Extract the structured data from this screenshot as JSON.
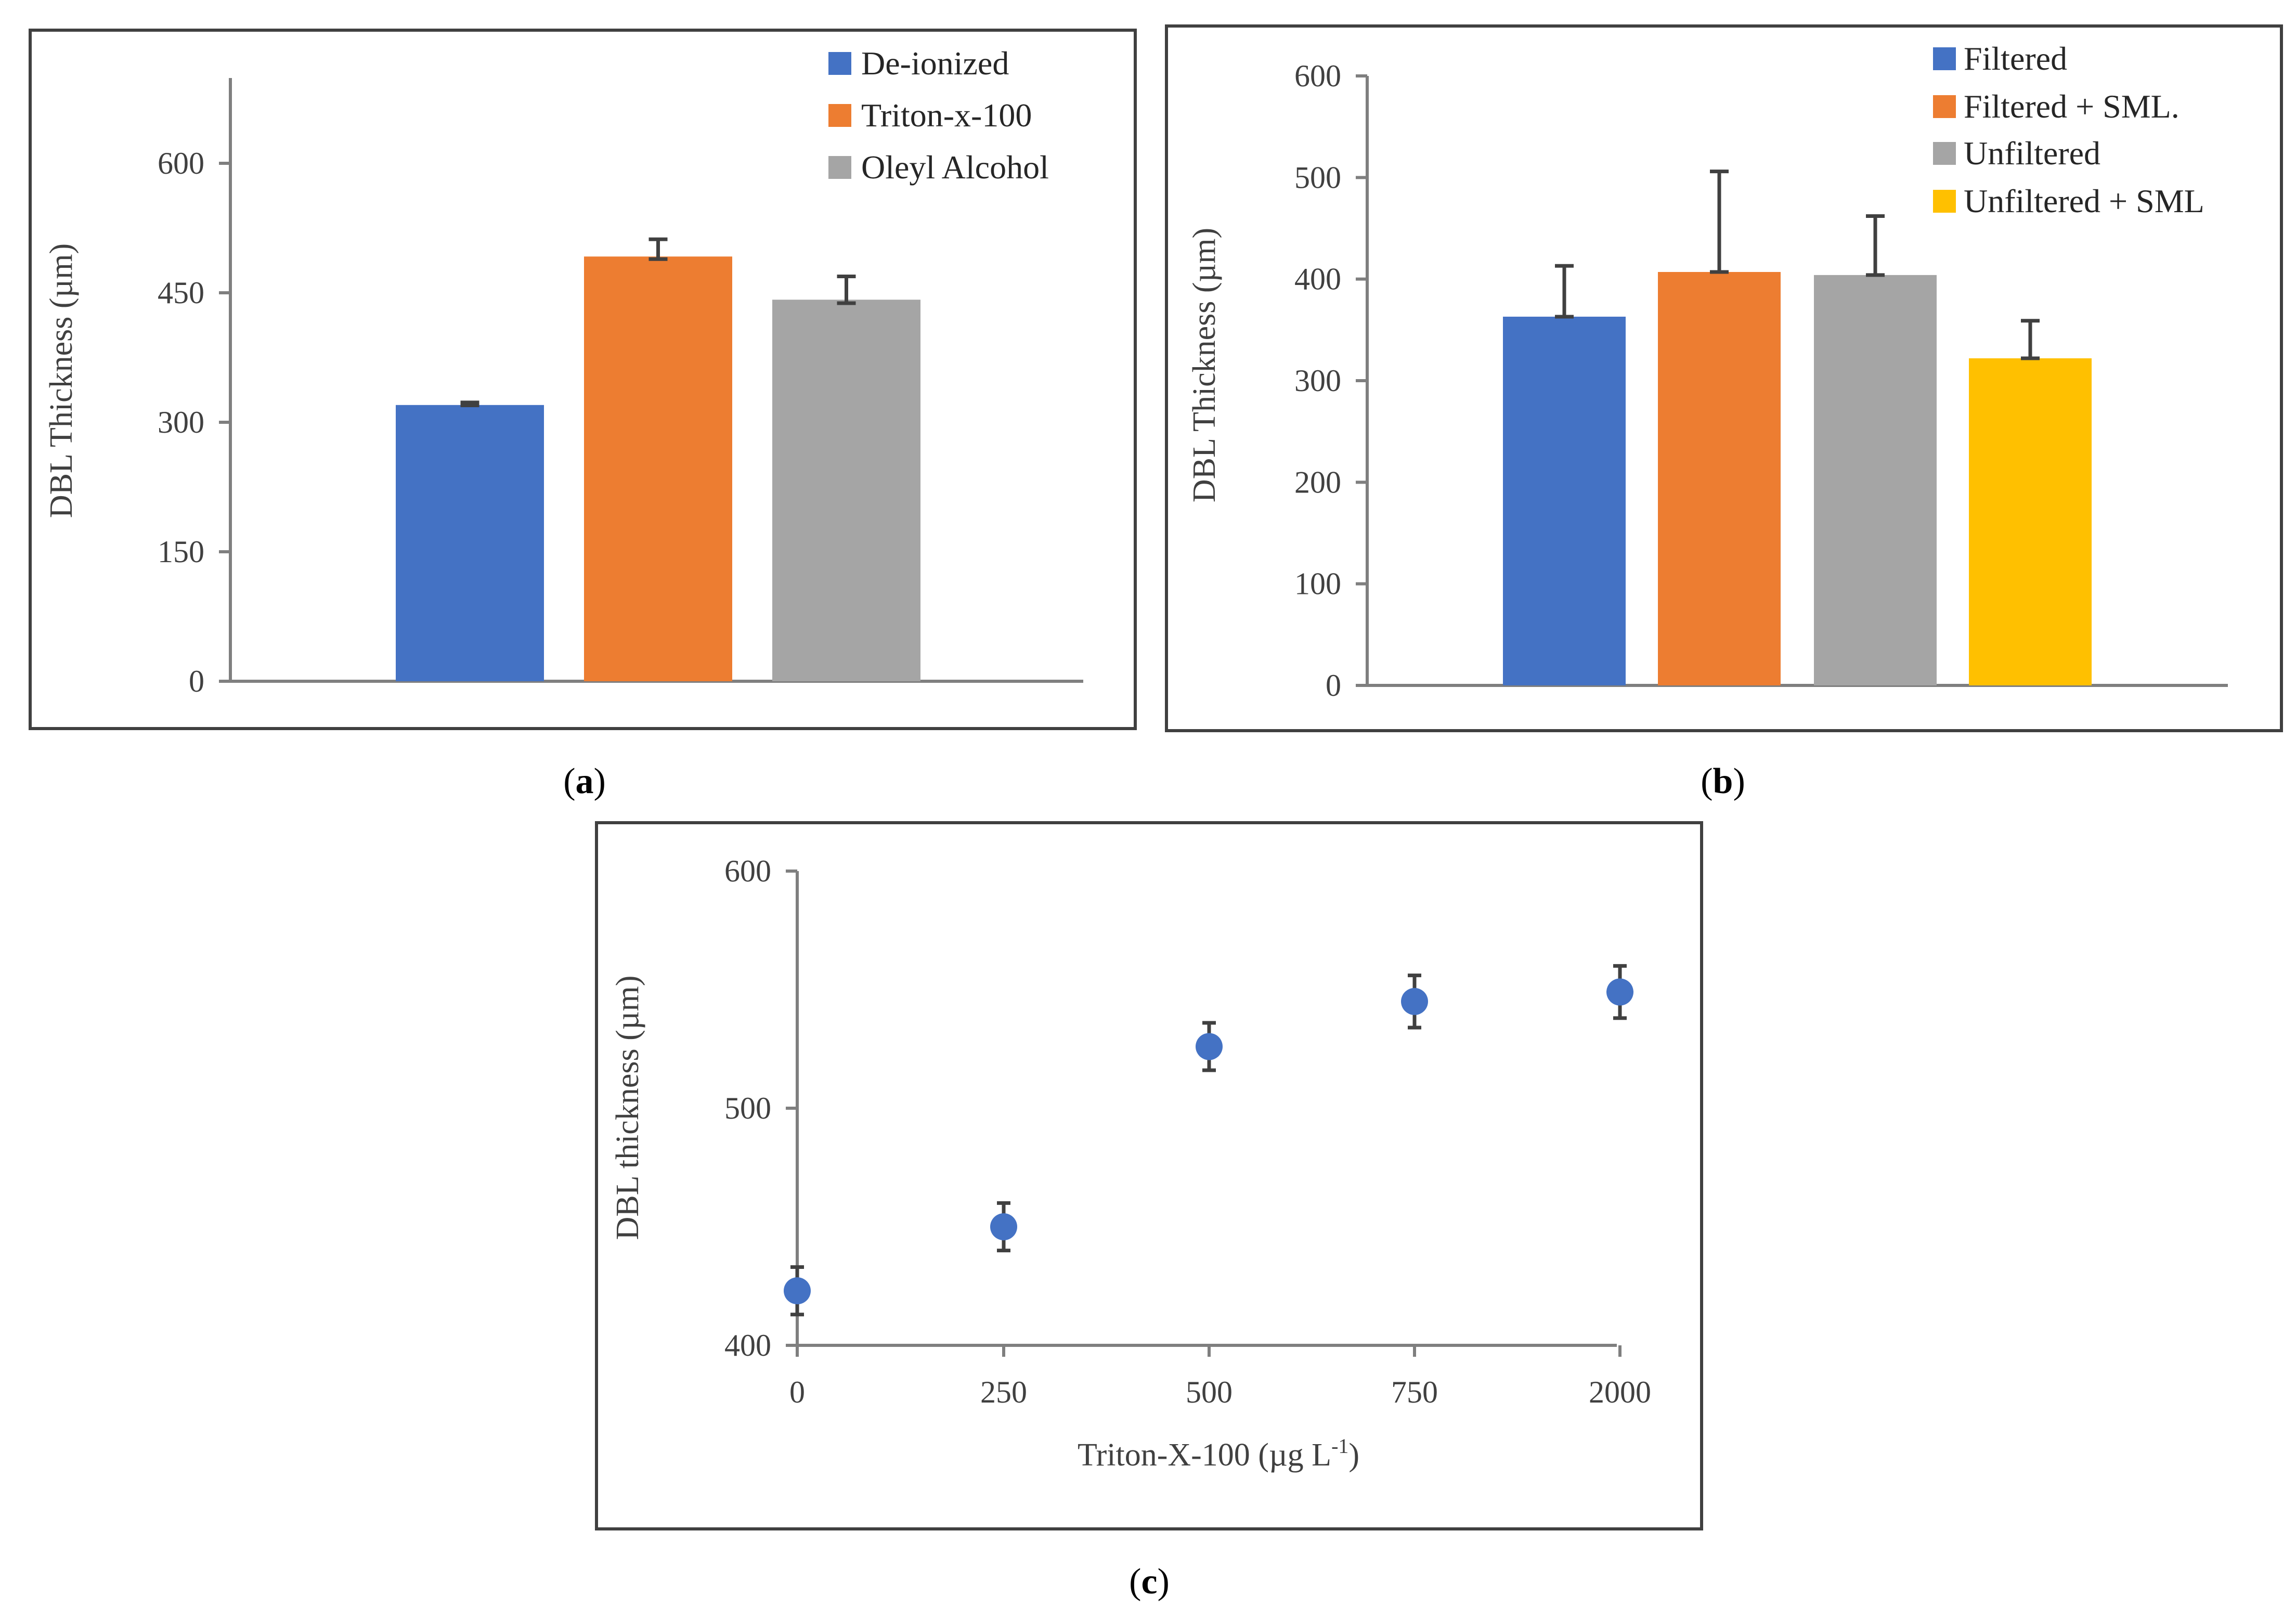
{
  "captions": {
    "a_letter": "a",
    "b_letter": "b",
    "c_letter": "c"
  },
  "chart_data": [
    {
      "id": "a",
      "type": "bar",
      "ylabel": "DBL Thickness (µm)",
      "ylim": [
        0,
        700
      ],
      "yticks": [
        0,
        150,
        300,
        450,
        600
      ],
      "legend_position": "top-right",
      "series": [
        {
          "name": "De-ionized",
          "value": 320,
          "error": 3,
          "color": "#4472C4"
        },
        {
          "name": "Triton-x-100",
          "value": 492,
          "error": 20,
          "color": "#ED7D31"
        },
        {
          "name": "Oleyl Alcohol",
          "value": 442,
          "error": 27,
          "color": "#A5A5A5"
        }
      ]
    },
    {
      "id": "b",
      "type": "bar",
      "ylabel": "DBL Thickness (µm)",
      "ylim": [
        0,
        600
      ],
      "yticks": [
        0,
        100,
        200,
        300,
        400,
        500,
        600
      ],
      "legend_position": "top-right",
      "series": [
        {
          "name": "Filtered",
          "value": 363,
          "error": 50,
          "color": "#4472C4"
        },
        {
          "name": "Filtered + SML.",
          "value": 407,
          "error": 99,
          "color": "#ED7D31"
        },
        {
          "name": "Unfiltered",
          "value": 404,
          "error": 58,
          "color": "#A5A5A5"
        },
        {
          "name": "Unfiltered + SML",
          "value": 322,
          "error": 37,
          "color": "#FFC000"
        }
      ]
    },
    {
      "id": "c",
      "type": "scatter",
      "ylabel": "DBL thickness (µm)",
      "xlabel": "Triton-X-100 (µg L",
      "xlabel_sup": "-1",
      "xlabel_end": ")",
      "ylim": [
        400,
        600
      ],
      "yticks": [
        400,
        500,
        600
      ],
      "categories": [
        "0",
        "250",
        "500",
        "750",
        "2000"
      ],
      "values": [
        423,
        450,
        526,
        545,
        549
      ],
      "errors": [
        10,
        10,
        10,
        11,
        11
      ],
      "color": "#4472C4"
    }
  ]
}
